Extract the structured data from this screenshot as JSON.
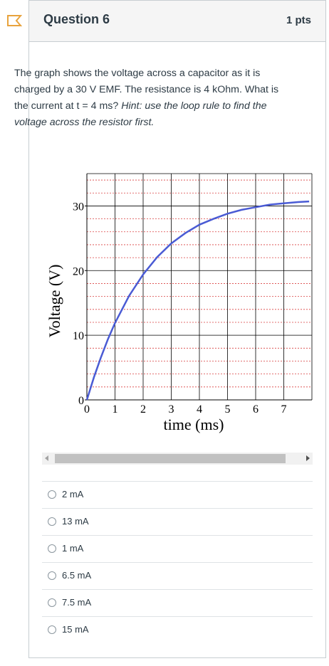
{
  "question": {
    "title": "Question 6",
    "points": "1 pts",
    "text_main": "The graph shows the voltage across a capacitor as it is charged by a 30 V EMF.  The resistance is 4 kOhm.  What is the current at t = 4 ms? ",
    "text_hint": "Hint: use the loop rule to find the voltage across the resistor first."
  },
  "answers": [
    {
      "label": "2 mA"
    },
    {
      "label": "13 mA"
    },
    {
      "label": "1 mA"
    },
    {
      "label": "6.5 mA"
    },
    {
      "label": "7.5 mA"
    },
    {
      "label": "15 mA"
    }
  ],
  "colors": {
    "curve": "#4a5bd4",
    "grid": "#d94040",
    "flag": "#e8a33d"
  },
  "chart_data": {
    "type": "line",
    "xlabel": "time (ms)",
    "ylabel": "Voltage (V)",
    "xlim": [
      0,
      8
    ],
    "ylim": [
      0,
      35
    ],
    "xticks": [
      "0",
      "1",
      "2",
      "3",
      "4",
      "5",
      "6",
      "7"
    ],
    "yticks": [
      "0",
      "10",
      "20",
      "30"
    ],
    "grid": true,
    "series": [
      {
        "x": [
          0,
          0.25,
          0.5,
          0.75,
          1,
          1.5,
          2,
          2.5,
          3,
          3.5,
          4,
          4.5,
          5,
          5.5,
          6,
          6.5,
          7,
          7.5,
          7.9
        ],
        "values": [
          0,
          3.5,
          6.6,
          9.4,
          11.9,
          16.1,
          19.4,
          22.1,
          24.2,
          25.8,
          27.1,
          28.0,
          28.8,
          29.4,
          29.8,
          30.2,
          30.4,
          30.6,
          30.7
        ]
      }
    ]
  }
}
